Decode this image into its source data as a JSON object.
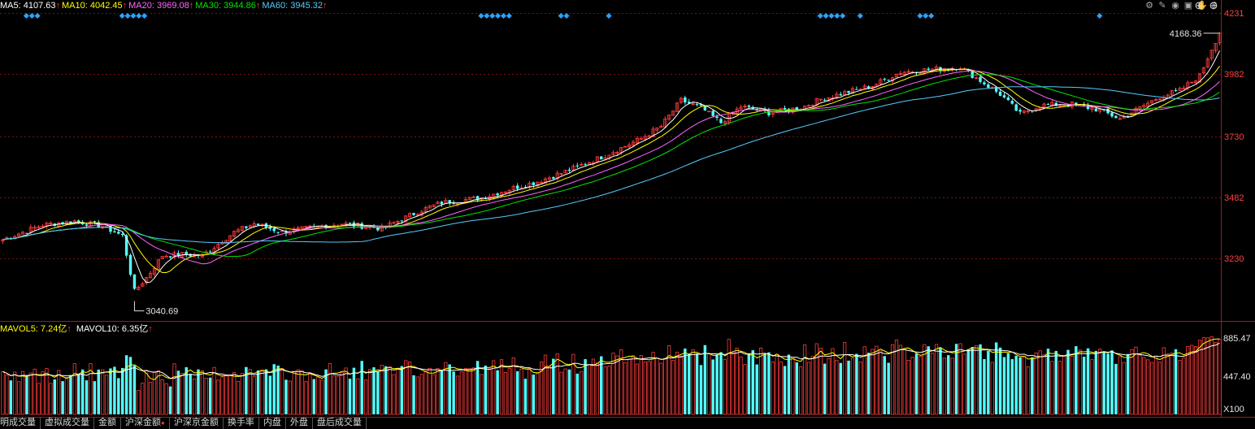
{
  "colors": {
    "up": "#ff3c3c",
    "down": "#54ffff",
    "ma5": "#ffffff",
    "ma10": "#ffff00",
    "ma20": "#ff66ff",
    "ma30": "#00e600",
    "ma60": "#55ccff",
    "grid": "#7a1212",
    "axis_text": "#ff4040",
    "marker": "#2aa3ff"
  },
  "ma_legend": [
    {
      "label": "MA5:",
      "value": "4107.63",
      "arrow": "↑",
      "color": "#ffffff"
    },
    {
      "label": "MA10:",
      "value": "4042.45",
      "arrow": "↑",
      "color": "#ffff00"
    },
    {
      "label": "MA20:",
      "value": "3969.08",
      "arrow": "↑",
      "color": "#ff66ff"
    },
    {
      "label": "MA30:",
      "value": "3944.86",
      "arrow": "↑",
      "color": "#00e600"
    },
    {
      "label": "MA60:",
      "value": "3945.32",
      "arrow": "↑",
      "color": "#55ccff"
    }
  ],
  "vol_legend": [
    {
      "label": "MAVOL5:",
      "value": "7.24亿",
      "arrow": "↑",
      "color": "#ffff00"
    },
    {
      "label": "MAVOL10:",
      "value": "6.35亿",
      "arrow": "↑",
      "color": "#ffffff"
    }
  ],
  "toolbar_icons": [
    "gear-icon",
    "pen-icon",
    "eye-icon",
    "gift-icon",
    "hand-icon",
    "dollar-icon"
  ],
  "window_controls": [
    "zoom-in-icon",
    "zoom-out-icon"
  ],
  "chart_data": {
    "type": "candlestick",
    "price_axis": {
      "ticks": [
        "4231",
        "3982",
        "3730",
        "3482",
        "3230"
      ],
      "ylim": [
        3000,
        4250
      ]
    },
    "volume_axis": {
      "ticks": [
        "885.47",
        "447.40"
      ],
      "unit_label": "X100",
      "ylim": [
        0,
        900
      ]
    },
    "high_annotation": "4168.36",
    "low_annotation": "3040.69",
    "anchors": [
      [
        0,
        3330
      ],
      [
        10,
        3390
      ],
      [
        18,
        3405
      ],
      [
        25,
        3385
      ],
      [
        30,
        3345
      ],
      [
        33,
        3120
      ],
      [
        36,
        3175
      ],
      [
        40,
        3265
      ],
      [
        45,
        3270
      ],
      [
        50,
        3265
      ],
      [
        58,
        3360
      ],
      [
        63,
        3395
      ],
      [
        70,
        3360
      ],
      [
        78,
        3380
      ],
      [
        85,
        3395
      ],
      [
        95,
        3375
      ],
      [
        105,
        3450
      ],
      [
        110,
        3480
      ],
      [
        120,
        3500
      ],
      [
        128,
        3540
      ],
      [
        133,
        3560
      ],
      [
        140,
        3600
      ],
      [
        150,
        3665
      ],
      [
        160,
        3740
      ],
      [
        165,
        3790
      ],
      [
        170,
        3895
      ],
      [
        175,
        3865
      ],
      [
        180,
        3805
      ],
      [
        185,
        3870
      ],
      [
        192,
        3845
      ],
      [
        200,
        3865
      ],
      [
        205,
        3900
      ],
      [
        212,
        3930
      ],
      [
        218,
        3955
      ],
      [
        225,
        4010
      ],
      [
        232,
        4020
      ],
      [
        240,
        4030
      ],
      [
        245,
        3975
      ],
      [
        250,
        3920
      ],
      [
        255,
        3840
      ],
      [
        260,
        3875
      ],
      [
        268,
        3880
      ],
      [
        275,
        3855
      ],
      [
        280,
        3820
      ],
      [
        285,
        3865
      ],
      [
        290,
        3910
      ],
      [
        295,
        3935
      ],
      [
        300,
        3995
      ],
      [
        303,
        4105
      ],
      [
        305,
        4168
      ]
    ],
    "ma_periods": [
      5,
      10,
      20,
      30,
      60
    ]
  },
  "tabs": [
    {
      "label": "明成交量",
      "dot": false
    },
    {
      "label": "虚拟成交量",
      "dot": false
    },
    {
      "label": "金额",
      "dot": false
    },
    {
      "label": "沪深金额",
      "dot": true
    },
    {
      "label": "沪深京金额",
      "dot": false
    },
    {
      "label": "换手率",
      "dot": false
    },
    {
      "label": "内盘",
      "dot": false
    },
    {
      "label": "外盘",
      "dot": false
    },
    {
      "label": "盘后成交量",
      "dot": false
    }
  ]
}
